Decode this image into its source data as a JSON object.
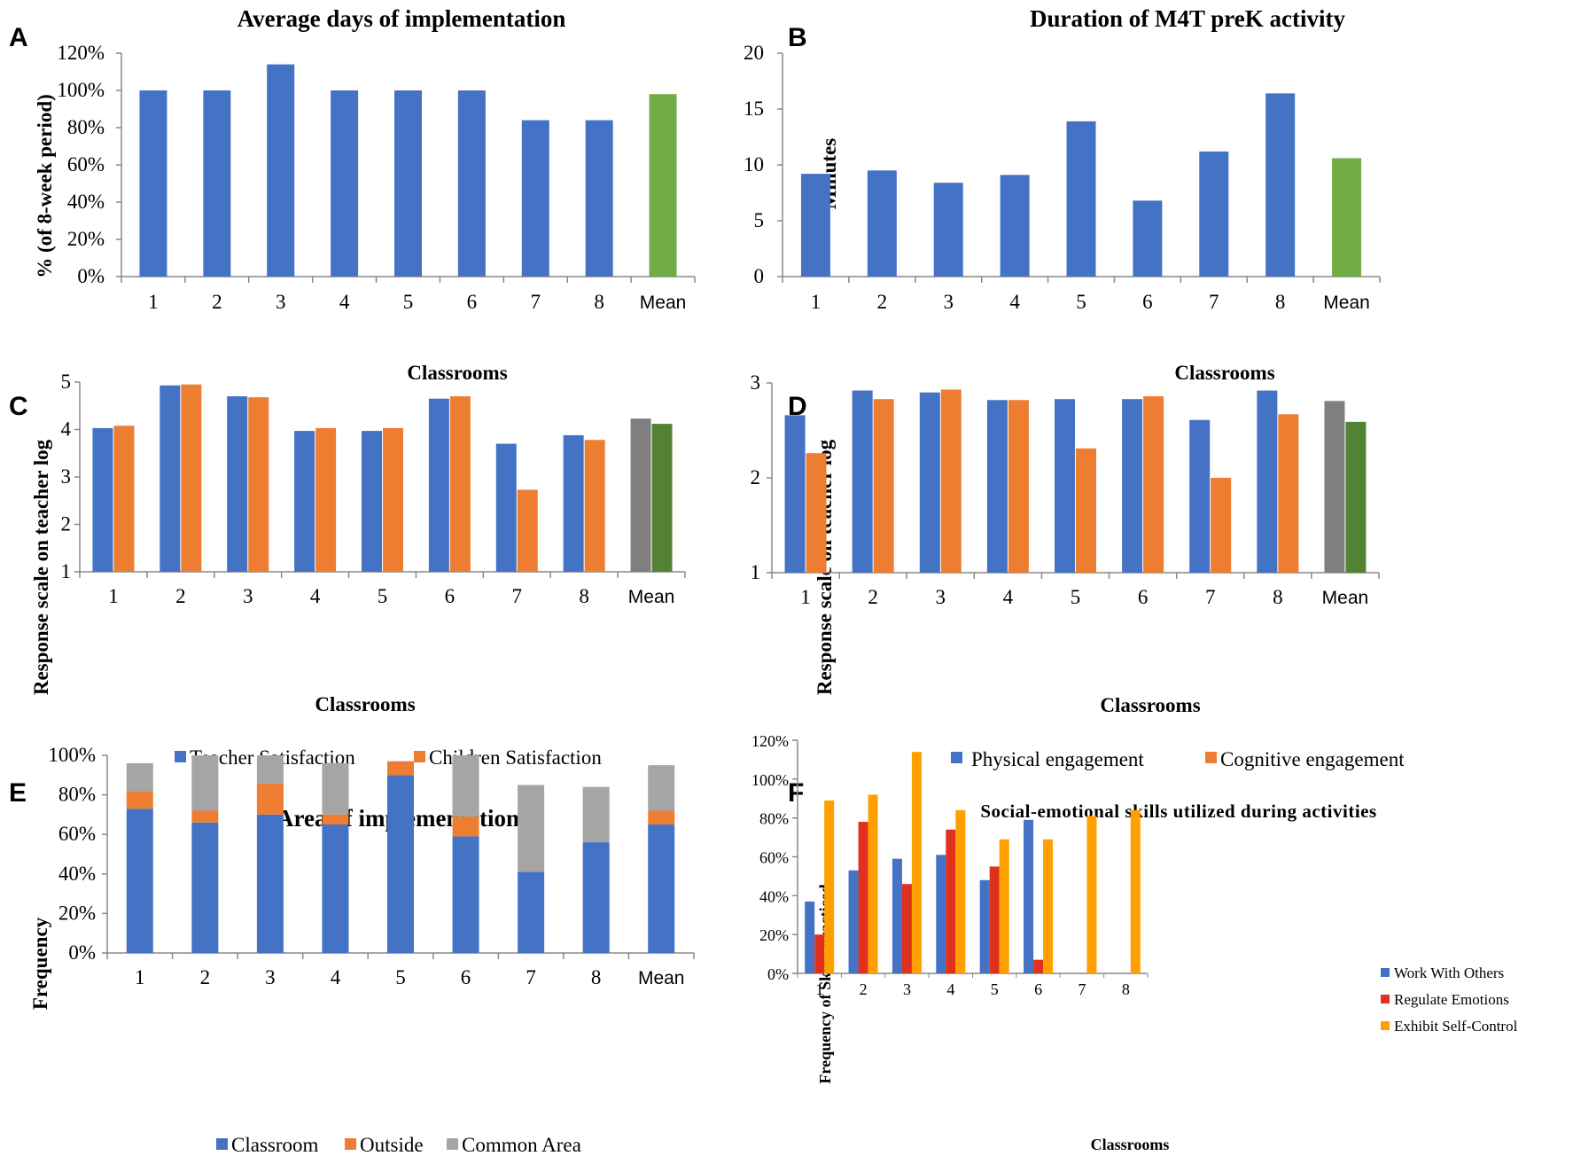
{
  "colors": {
    "blue": "#4472C4",
    "orange": "#ED7D31",
    "green_light": "#70AD47",
    "gray": "#7F7F7F",
    "green_dark": "#548235",
    "gray_light": "#A5A5A5",
    "red": "#E0301E",
    "amber": "#FFA000",
    "axis": "#888888"
  },
  "chart_data": [
    {
      "id": "A",
      "type": "bar",
      "title": "Average  days  of  implementation",
      "xlabel": "Classrooms",
      "ylabel": "% (of 8-week period)",
      "categories": [
        "1",
        "2",
        "3",
        "4",
        "5",
        "6",
        "7",
        "8",
        "Mean"
      ],
      "values": [
        100,
        100,
        114,
        100,
        100,
        100,
        84,
        84,
        98
      ],
      "ylim": [
        0,
        120
      ],
      "yticks": [
        "0%",
        "20%",
        "40%",
        "60%",
        "80%",
        "100%",
        "120%"
      ]
    },
    {
      "id": "B",
      "type": "bar",
      "title": "Duration  of  M4T  preK  activity",
      "xlabel": "Classrooms",
      "ylabel": "Minutes",
      "categories": [
        "1",
        "2",
        "3",
        "4",
        "5",
        "6",
        "7",
        "8",
        "Mean"
      ],
      "values": [
        9.2,
        9.5,
        8.4,
        9.1,
        13.9,
        6.8,
        11.2,
        16.4,
        10.6
      ],
      "ylim": [
        0,
        20
      ],
      "yticks": [
        "0",
        "5",
        "10",
        "15",
        "20"
      ]
    },
    {
      "id": "C",
      "type": "bar",
      "title": "",
      "xlabel": "Classrooms",
      "ylabel": "Response scale on teacher log",
      "categories": [
        "1",
        "2",
        "3",
        "4",
        "5",
        "6",
        "7",
        "8",
        "Mean"
      ],
      "series": [
        {
          "name": "Teacher Satisfaction",
          "values": [
            4.03,
            4.93,
            4.7,
            3.97,
            3.97,
            4.65,
            3.7,
            3.88,
            4.23
          ]
        },
        {
          "name": "Children Satisfaction",
          "values": [
            4.08,
            4.95,
            4.68,
            4.03,
            4.03,
            4.7,
            2.73,
            3.78,
            4.12
          ]
        }
      ],
      "ylim": [
        1,
        5
      ],
      "yticks": [
        "1",
        "2",
        "3",
        "4",
        "5"
      ]
    },
    {
      "id": "D",
      "type": "bar",
      "title": "",
      "xlabel": "Classrooms",
      "ylabel": "Response scale on teacher log",
      "categories": [
        "1",
        "2",
        "3",
        "4",
        "5",
        "6",
        "7",
        "8",
        "Mean"
      ],
      "series": [
        {
          "name": "Physical engagement",
          "values": [
            2.66,
            2.92,
            2.9,
            2.82,
            2.83,
            2.83,
            2.61,
            2.92,
            2.81
          ]
        },
        {
          "name": "Cognitive engagement",
          "values": [
            2.26,
            2.83,
            2.93,
            2.82,
            2.31,
            2.86,
            2.0,
            2.67,
            2.59
          ]
        }
      ],
      "ylim": [
        1,
        3
      ],
      "yticks": [
        "1",
        "2",
        "3"
      ]
    },
    {
      "id": "E",
      "type": "bar",
      "stacked": true,
      "title": "Area  of  implementation",
      "xlabel": "",
      "ylabel": "Frequency",
      "categories": [
        "1",
        "2",
        "3",
        "4",
        "5",
        "6",
        "7",
        "8",
        "Mean"
      ],
      "series": [
        {
          "name": "Classroom",
          "values": [
            73,
            66,
            70,
            65,
            90,
            59,
            41,
            56,
            65
          ]
        },
        {
          "name": "Outside",
          "values": [
            9,
            6,
            16,
            5,
            7,
            10,
            0,
            0,
            7
          ]
        },
        {
          "name": "Common Area",
          "values": [
            14,
            28,
            14,
            26,
            0,
            31,
            44,
            28,
            23
          ]
        }
      ],
      "ylim": [
        0,
        100
      ],
      "yticks": [
        "0%",
        "20%",
        "40%",
        "60%",
        "80%",
        "100%"
      ]
    },
    {
      "id": "F",
      "type": "bar",
      "title": "Social-emotional  skills  utilized  during  activities",
      "xlabel": "Classrooms",
      "ylabel": "Frequency of Skills Practiced",
      "categories": [
        "1",
        "2",
        "3",
        "4",
        "5",
        "6",
        "7",
        "8"
      ],
      "series": [
        {
          "name": "Work With Others",
          "values": [
            37,
            53,
            59,
            61,
            48,
            79,
            0,
            0
          ]
        },
        {
          "name": "Regulate Emotions",
          "values": [
            20,
            78,
            46,
            74,
            55,
            7,
            0,
            0
          ]
        },
        {
          "name": "Exhibit Self-Control",
          "values": [
            89,
            92,
            114,
            84,
            69,
            69,
            81,
            84
          ]
        }
      ],
      "ylim": [
        0,
        120
      ],
      "yticks": [
        "0%",
        "20%",
        "40%",
        "60%",
        "80%",
        "100%",
        "120%"
      ]
    }
  ]
}
